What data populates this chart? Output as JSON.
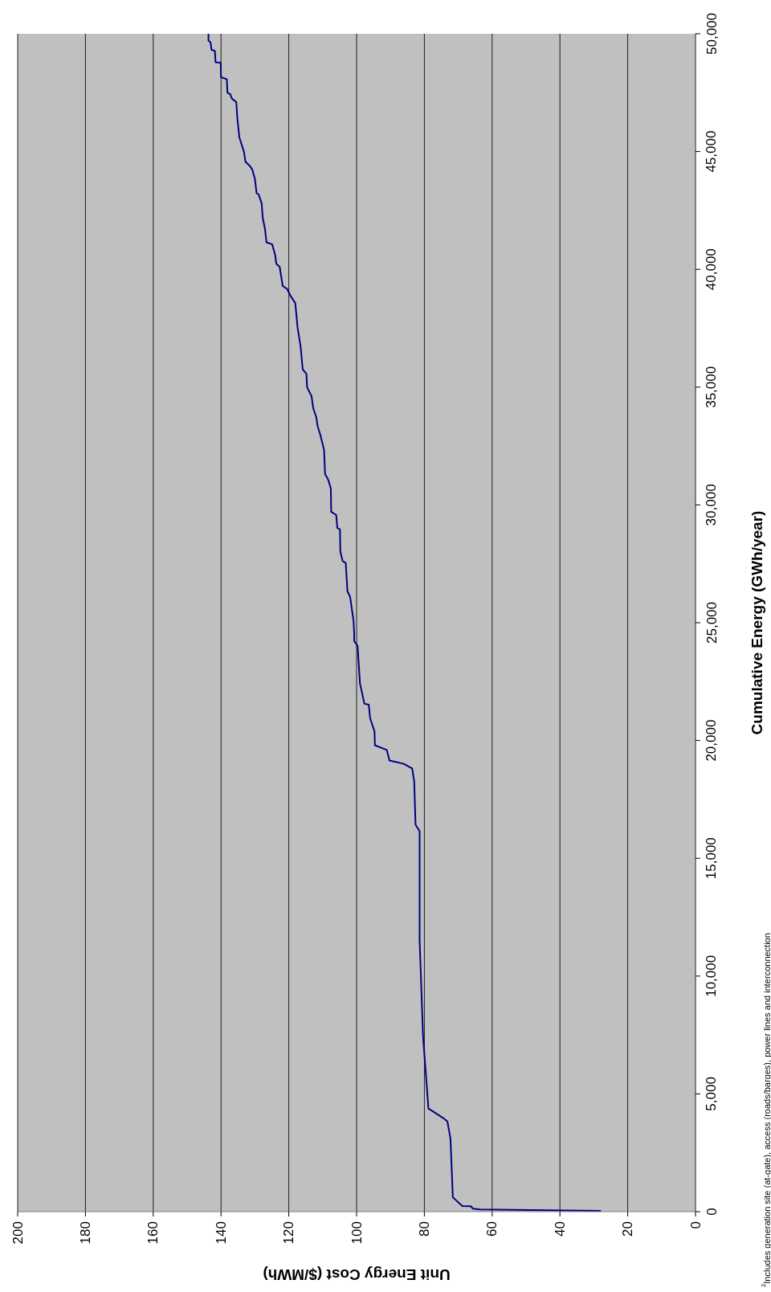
{
  "chart_data": {
    "type": "line",
    "xlabel": "Unit Energy Cost ($/MWh)",
    "ylabel": "Cumulative Energy (GWh/year)",
    "annotations": [
      "$^{2}$Includes generation site (at-gate), access (roads/barges), power lines and interconnection"
    ],
    "xlim": [
      200,
      0
    ],
    "xticks": [
      0,
      20,
      40,
      60,
      80,
      100,
      120,
      140,
      160,
      180,
      200
    ],
    "ylim": [
      0,
      50000
    ],
    "yticks": [
      0,
      {
        "value": 5000,
        "label": "5,000"
      },
      {
        "value": 10000,
        "label": "10,000"
      },
      {
        "value": 15000,
        "label": "15,000"
      },
      {
        "value": 20000,
        "label": "20,000"
      },
      {
        "value": 25000,
        "label": "25,000"
      },
      {
        "value": 30000,
        "label": "30,000"
      },
      {
        "value": 35000,
        "label": "35,000"
      },
      {
        "value": 40000,
        "label": "40,000"
      },
      {
        "value": 45000,
        "label": "45,000"
      },
      {
        "value": 50000,
        "label": "50,000"
      }
    ],
    "grid": "x",
    "marker": "none",
    "line_style": "solid",
    "series": [
      {
        "color": "#000080",
        "x": [
          27.9,
          63.7,
          65.7,
          66.3,
          68.8,
          71.6,
          72.3,
          73.2,
          74.5,
          78.8,
          80.4,
          81.4,
          81.4,
          82.6,
          83.0,
          83.6,
          86.1,
          90.3,
          91.1,
          94.6,
          94.7,
          96.0,
          96.4,
          97.7,
          99.0,
          99.7,
          100.7,
          100.7,
          100.9,
          101.9,
          102.7,
          103.2,
          104.1,
          104.8,
          104.9,
          105.7,
          106.0,
          107.5,
          107.6,
          108.4,
          109.3,
          109.6,
          110.7,
          111.5,
          111.9,
          112.8,
          113.3,
          114.6,
          114.8,
          115.9,
          116.5,
          117.4,
          118.1,
          119.4,
          120.5,
          121.8,
          122.7,
          123.7,
          124.0,
          124.9,
          126.6,
          127.0,
          127.7,
          128.0,
          128.9,
          129.5,
          130.0,
          130.8,
          131.4,
          132.8,
          133.2,
          134.6,
          135.2,
          135.5,
          136.8,
          137.3,
          138.1,
          138.3,
          140.0,
          140.1,
          141.6,
          141.8,
          142.8,
          143.1,
          143.7,
          143.7
        ],
        "values": [
          30,
          90,
          130,
          230,
          240,
          610,
          3100,
          3830,
          3980,
          4380,
          7470,
          11500,
          16150,
          16420,
          18260,
          18810,
          19010,
          19150,
          19600,
          19800,
          20380,
          20940,
          21520,
          21560,
          22420,
          24010,
          24220,
          24520,
          25080,
          26090,
          26340,
          27540,
          27610,
          28020,
          28960,
          29020,
          29570,
          29710,
          30700,
          31080,
          31310,
          32340,
          32970,
          33350,
          33730,
          34110,
          34620,
          34990,
          35560,
          35760,
          36700,
          37520,
          38570,
          38850,
          39170,
          39290,
          40110,
          40240,
          40590,
          41060,
          41150,
          41690,
          42200,
          42790,
          43180,
          43230,
          43840,
          44240,
          44370,
          44570,
          44970,
          45610,
          46430,
          47100,
          47250,
          47440,
          47500,
          48070,
          48160,
          48770,
          48790,
          49270,
          49320,
          49630,
          49710,
          50000
        ]
      }
    ]
  }
}
